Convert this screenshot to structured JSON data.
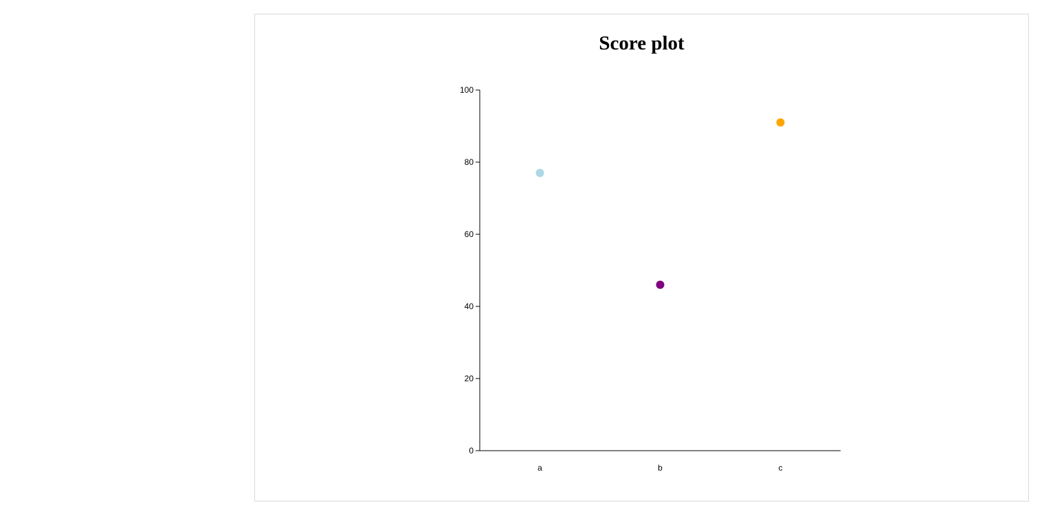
{
  "chart_data": {
    "type": "scatter",
    "title": "Score plot",
    "xlabel": "",
    "ylabel": "",
    "categories": [
      "a",
      "b",
      "c"
    ],
    "values": [
      77,
      46,
      91
    ],
    "colors": [
      "#add8e6",
      "#800080",
      "#ffa500"
    ],
    "ylim": [
      0,
      100
    ],
    "yticks": [
      "0",
      "20",
      "40",
      "60",
      "80",
      "100"
    ],
    "grid": false,
    "legend": "none"
  }
}
